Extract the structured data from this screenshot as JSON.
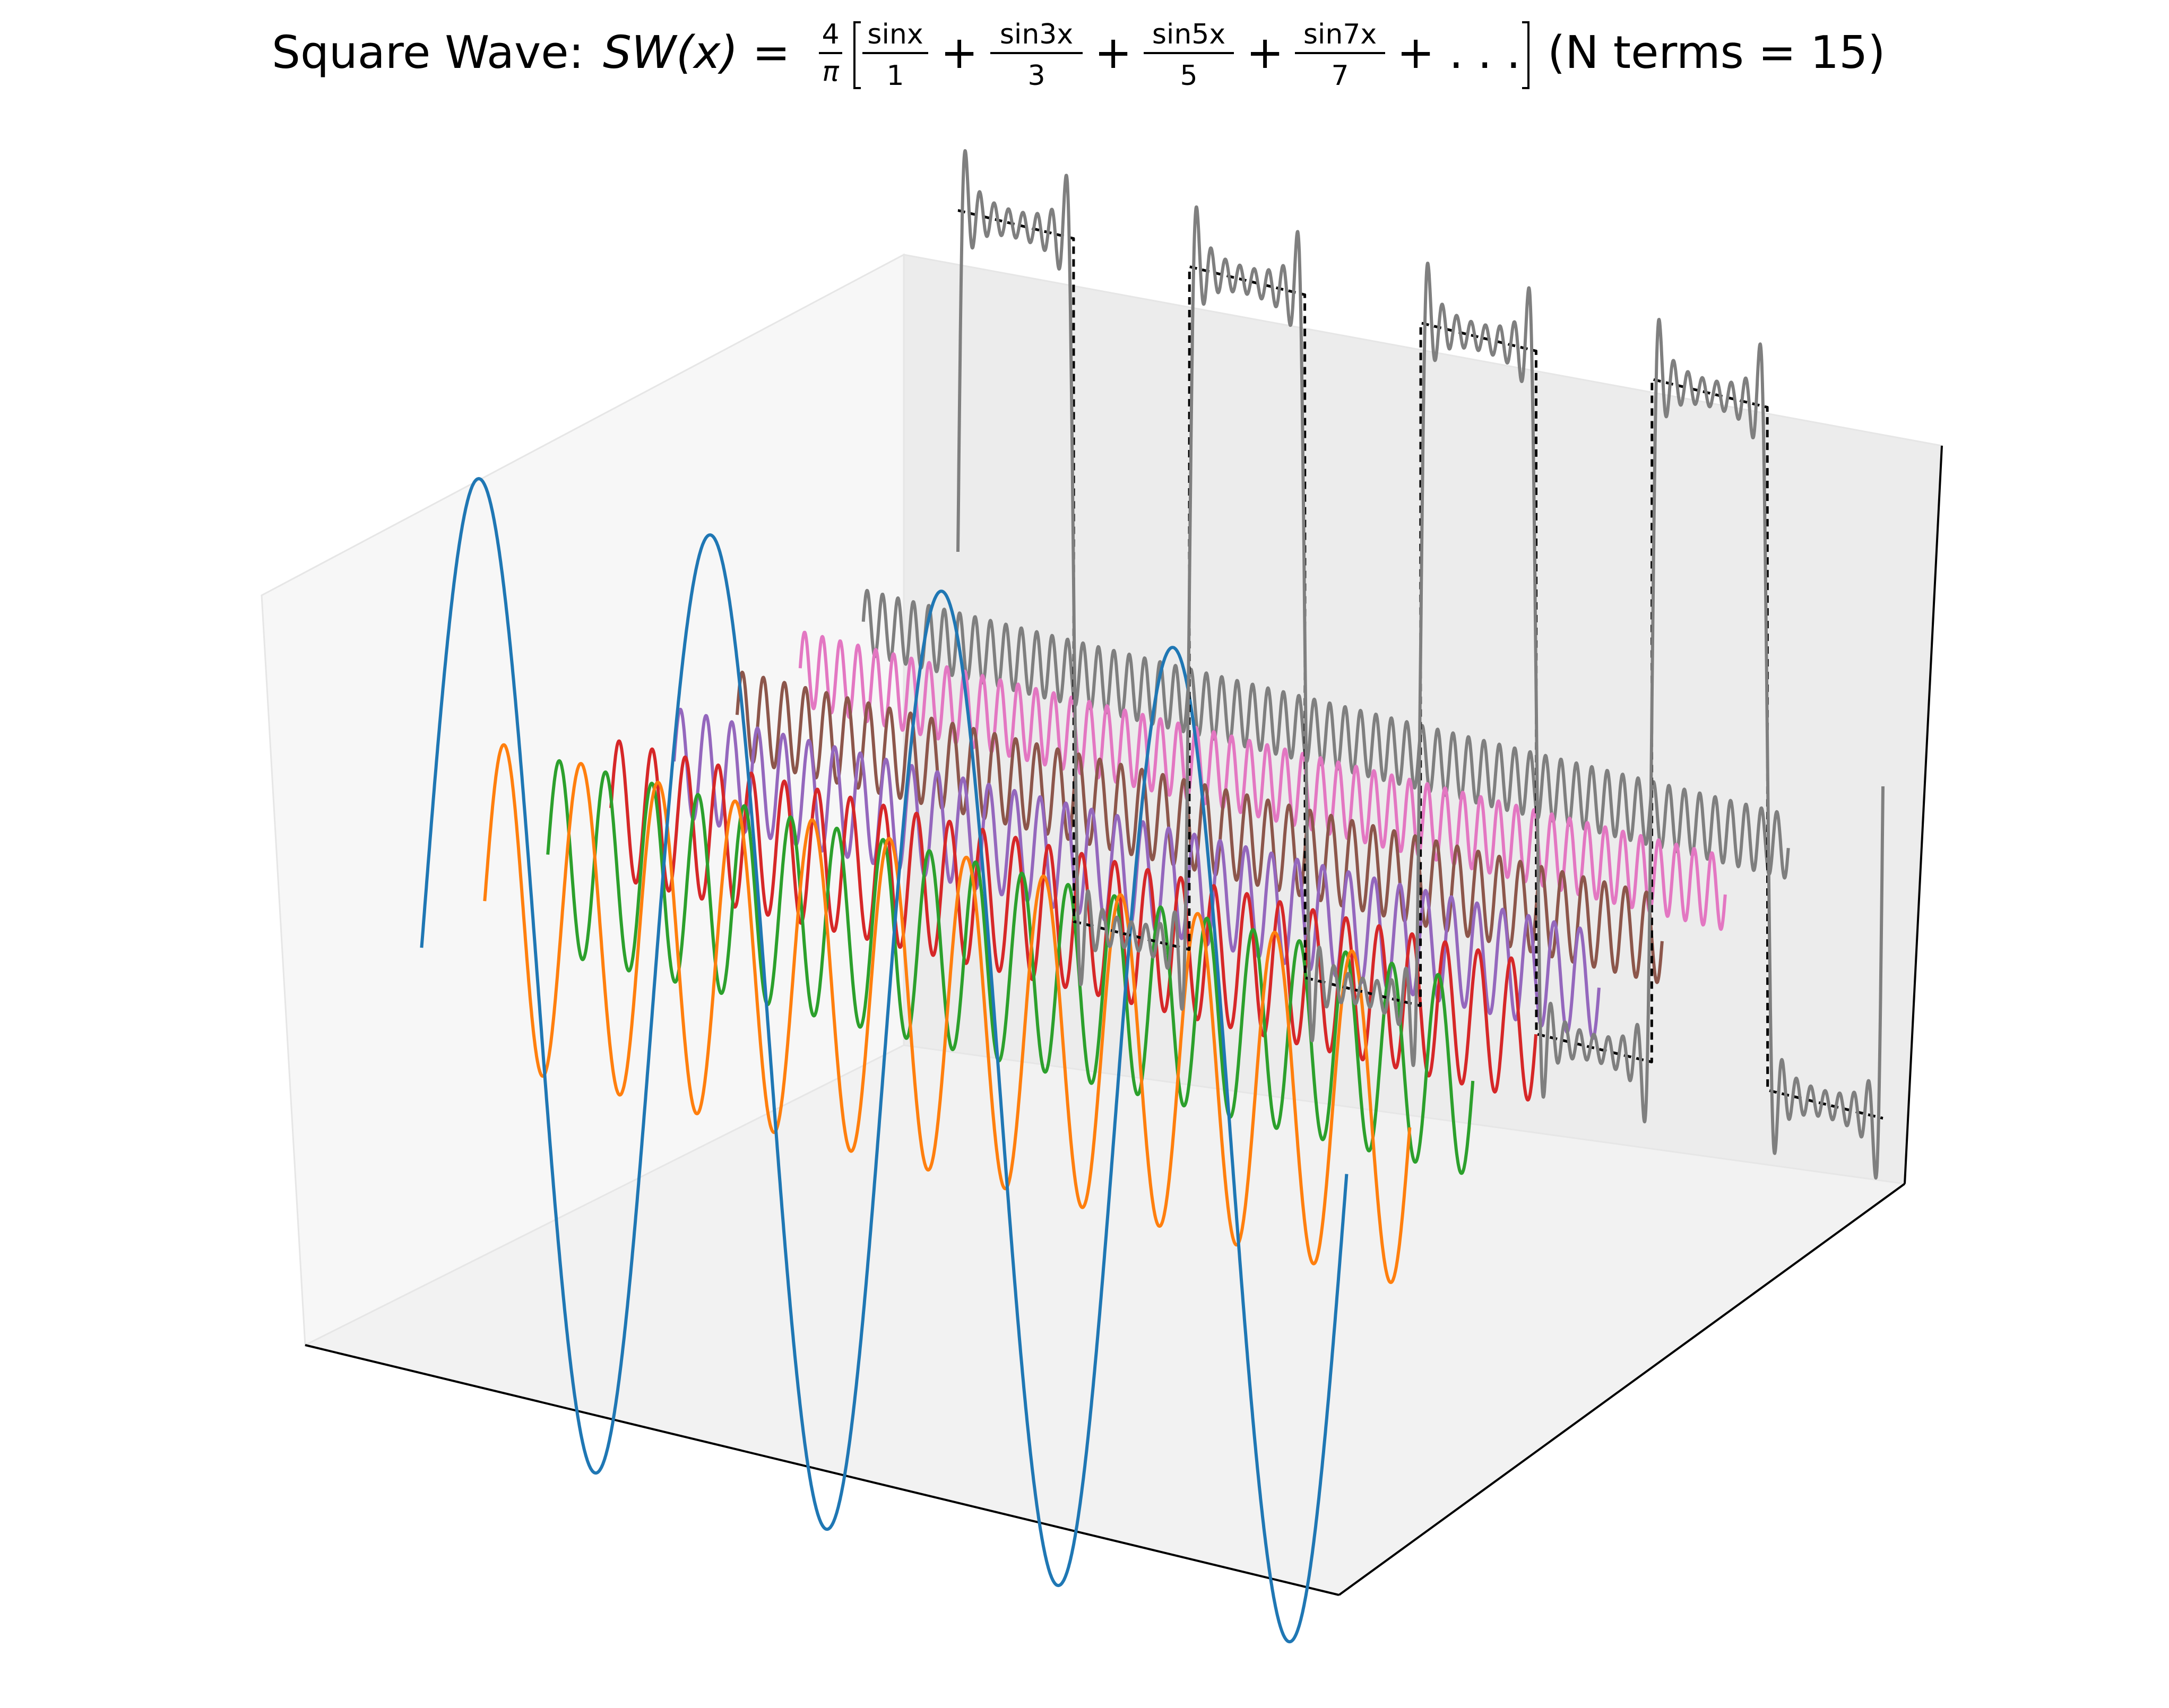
{
  "title": {
    "prefix": "Square Wave: ",
    "lhs": "SW(x) =",
    "factor_num": "4",
    "factor_den": "π",
    "terms": [
      {
        "num": "sinx",
        "den": "1"
      },
      {
        "num": "sin3x",
        "den": "3"
      },
      {
        "num": "sin5x",
        "den": "5"
      },
      {
        "num": "sin7x",
        "den": "7"
      }
    ],
    "ellipsis": "+ . . .",
    "suffix": "(N terms = 15)"
  },
  "chart_data": {
    "type": "line",
    "projection": "3d",
    "n_terms": 15,
    "x_range": [
      0,
      25.13
    ],
    "axes_ticks_visible": false,
    "grid": false,
    "series": [
      {
        "harmonic": 1,
        "amplitude": 1.2732,
        "color": "#1f77b4"
      },
      {
        "harmonic": 3,
        "amplitude": 0.4244,
        "color": "#ff7f0e"
      },
      {
        "harmonic": 5,
        "amplitude": 0.2546,
        "color": "#2ca02c"
      },
      {
        "harmonic": 7,
        "amplitude": 0.1819,
        "color": "#d62728"
      },
      {
        "harmonic": 9,
        "amplitude": 0.1415,
        "color": "#9467bd"
      },
      {
        "harmonic": 11,
        "amplitude": 0.1157,
        "color": "#8c564b"
      },
      {
        "harmonic": 13,
        "amplitude": 0.0979,
        "color": "#e377c2"
      },
      {
        "harmonic": 15,
        "amplitude": 0.0849,
        "color": "#7f7f7f"
      }
    ],
    "sum_series": {
      "color": "#7f7f7f",
      "description_terms": 15
    },
    "ideal_square_wave": {
      "amplitude": 1,
      "color": "#000000",
      "line_style": "dashed"
    }
  }
}
